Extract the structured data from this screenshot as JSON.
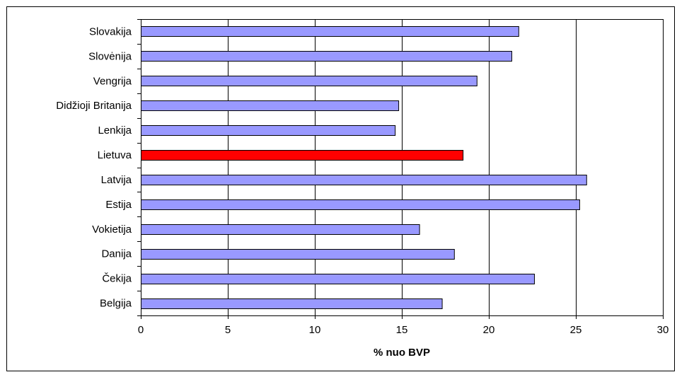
{
  "chart_data": {
    "type": "bar",
    "orientation": "horizontal",
    "title": "",
    "xlabel": "% nuo BVP",
    "ylabel": "",
    "xlim": [
      0,
      30
    ],
    "xticks": [
      0,
      5,
      10,
      15,
      20,
      25,
      30
    ],
    "xtick_labels": [
      "0",
      "5",
      "10",
      "15",
      "20",
      "25",
      "30"
    ],
    "grid": "vertical",
    "legend": "none",
    "categories": [
      "Slovakija",
      "Slovėnija",
      "Vengrija",
      "Didžioji Britanija",
      "Lenkija",
      "Lietuva",
      "Latvija",
      "Estija",
      "Vokietija",
      "Danija",
      "Čekija",
      "Belgija"
    ],
    "values": [
      21.7,
      21.3,
      19.3,
      14.8,
      14.6,
      18.5,
      25.6,
      25.2,
      16.0,
      18.0,
      22.6,
      17.3
    ],
    "highlight_category": "Lietuva",
    "colors": {
      "bar": "#9999ff",
      "highlight": "#ff0000",
      "bar_stroke": "#000000",
      "grid": "#000000"
    }
  }
}
